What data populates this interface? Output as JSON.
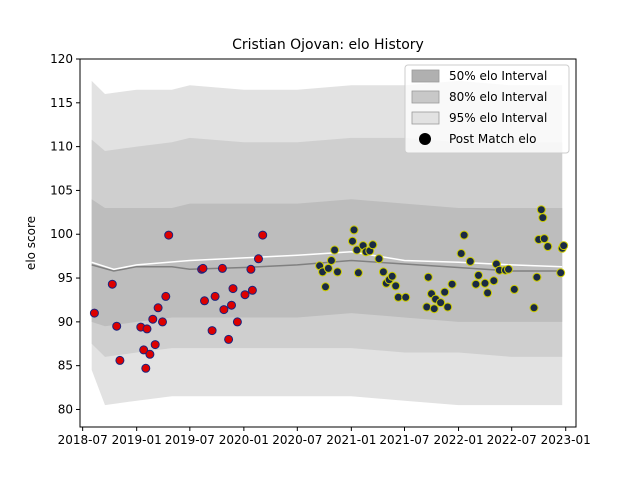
{
  "chart_data": {
    "type": "scatter",
    "title": "Cristian Ojovan: elo History",
    "xlabel": "",
    "ylabel": "elo score",
    "ylim": [
      78,
      120
    ],
    "xlim": [
      "2018-06-22",
      "2023-02-05"
    ],
    "grid": false,
    "legend_position": "top-right",
    "x_ticks": [
      "2018-07",
      "2019-01",
      "2019-07",
      "2020-01",
      "2020-07",
      "2021-01",
      "2021-07",
      "2022-01",
      "2022-07",
      "2023-01"
    ],
    "y_ticks": [
      80,
      85,
      90,
      95,
      100,
      105,
      110,
      115,
      120
    ],
    "legend": [
      {
        "label": "50% elo Interval",
        "kind": "band",
        "color": "#b0b0b0"
      },
      {
        "label": "80% elo Interval",
        "kind": "band",
        "color": "#c8c8c8"
      },
      {
        "label": "95% elo Interval",
        "kind": "band",
        "color": "#e2e2e2"
      },
      {
        "label": "Post Match elo",
        "kind": "marker",
        "color": "#000000"
      }
    ],
    "colors": {
      "band_95": "#e2e2e2",
      "band_80": "#cfcfcf",
      "band_50": "#bdbdbd",
      "mean_line": "#ffffff",
      "median_line": "#808080",
      "early_fill": "#dd0000",
      "early_edge": "#1a237e",
      "late_fill": "#1a2a44",
      "late_edge": "#cccc00"
    },
    "bands": {
      "x": [
        "2018-08-01",
        "2018-09-15",
        "2019-01-01",
        "2019-05-01",
        "2019-07-01",
        "2020-01-01",
        "2020-07-01",
        "2021-01-01",
        "2021-07-01",
        "2022-01-01",
        "2022-07-01",
        "2022-12-20"
      ],
      "p95_low": [
        84.5,
        80.5,
        81.0,
        81.5,
        81.5,
        81.5,
        81.5,
        81.5,
        81.0,
        80.5,
        80.5,
        80.5
      ],
      "p95_high": [
        117.5,
        116.0,
        116.5,
        116.5,
        117.0,
        116.5,
        116.5,
        117.0,
        117.0,
        117.5,
        117.0,
        117.0
      ],
      "p80_low": [
        87.5,
        86.0,
        86.5,
        87.0,
        87.0,
        87.0,
        87.0,
        87.0,
        86.5,
        86.5,
        86.0,
        86.0
      ],
      "p80_high": [
        110.8,
        109.5,
        110.0,
        110.5,
        111.0,
        110.5,
        110.5,
        111.0,
        111.0,
        110.5,
        110.5,
        110.5
      ],
      "p50_low": [
        90.0,
        89.5,
        90.0,
        90.5,
        90.5,
        90.5,
        90.5,
        91.0,
        90.5,
        90.0,
        90.0,
        90.0
      ],
      "p50_high": [
        104.0,
        103.0,
        103.0,
        103.0,
        103.5,
        103.5,
        103.5,
        104.0,
        103.5,
        103.0,
        103.0,
        103.0
      ]
    },
    "mean_line": {
      "x": [
        "2018-08-01",
        "2018-10-15",
        "2019-01-01",
        "2019-07-01",
        "2020-01-01",
        "2020-07-01",
        "2021-01-01",
        "2021-04-01",
        "2021-07-01",
        "2022-01-01",
        "2022-07-01",
        "2022-12-20"
      ],
      "y": [
        96.8,
        96.0,
        96.5,
        97.0,
        97.3,
        97.6,
        98.0,
        97.5,
        97.0,
        96.8,
        96.5,
        96.3
      ]
    },
    "median_line": {
      "x": [
        "2018-08-01",
        "2018-10-15",
        "2019-01-01",
        "2019-05-01",
        "2019-07-01",
        "2020-01-01",
        "2020-07-01",
        "2021-01-01",
        "2021-07-01",
        "2022-01-01",
        "2022-07-01",
        "2022-12-20"
      ],
      "y": [
        96.5,
        95.8,
        96.3,
        96.3,
        96.0,
        96.2,
        96.5,
        97.0,
        96.6,
        96.2,
        95.8,
        95.8
      ]
    },
    "series": [
      {
        "name": "Post Match elo",
        "style": "early",
        "x": [
          "2018-08-10",
          "2018-10-10",
          "2018-10-25",
          "2018-11-05",
          "2019-01-15",
          "2019-01-25",
          "2019-02-01",
          "2019-02-05",
          "2019-02-15",
          "2019-02-25",
          "2019-03-05",
          "2019-03-15",
          "2019-03-30",
          "2019-04-10",
          "2019-04-20",
          "2019-08-10",
          "2019-08-15",
          "2019-08-20",
          "2019-09-15",
          "2019-09-25",
          "2019-10-20",
          "2019-10-25",
          "2019-11-10",
          "2019-11-20",
          "2019-11-25",
          "2019-12-10",
          "2020-01-05",
          "2020-01-25",
          "2020-01-30",
          "2020-02-20",
          "2020-03-05"
        ],
        "y": [
          91.0,
          94.3,
          89.5,
          85.6,
          89.4,
          86.8,
          84.7,
          89.2,
          86.3,
          90.3,
          87.4,
          91.6,
          90.0,
          92.9,
          99.9,
          96.0,
          96.1,
          92.4,
          89.0,
          92.9,
          96.1,
          91.4,
          88.0,
          91.9,
          93.8,
          90.0,
          93.1,
          96.0,
          93.6,
          97.2,
          99.9
        ]
      },
      {
        "name": "Post Match elo",
        "style": "late",
        "x": [
          "2020-09-15",
          "2020-09-25",
          "2020-10-05",
          "2020-10-15",
          "2020-10-25",
          "2020-11-05",
          "2020-11-15",
          "2021-01-05",
          "2021-01-10",
          "2021-01-20",
          "2021-01-25",
          "2021-02-10",
          "2021-02-20",
          "2021-03-05",
          "2021-03-15",
          "2021-04-05",
          "2021-04-20",
          "2021-04-30",
          "2021-05-10",
          "2021-05-20",
          "2021-06-01",
          "2021-06-10",
          "2021-07-05",
          "2021-09-15",
          "2021-09-20",
          "2021-10-01",
          "2021-10-10",
          "2021-10-15",
          "2021-11-01",
          "2021-11-15",
          "2021-11-25",
          "2021-12-10",
          "2022-01-10",
          "2022-01-20",
          "2022-02-10",
          "2022-03-01",
          "2022-03-10",
          "2022-04-01",
          "2022-04-10",
          "2022-05-01",
          "2022-05-10",
          "2022-05-20",
          "2022-06-10",
          "2022-06-20",
          "2022-07-10",
          "2022-09-15",
          "2022-09-25",
          "2022-10-01",
          "2022-10-10",
          "2022-10-15",
          "2022-10-20",
          "2022-11-01",
          "2022-12-15",
          "2022-12-20",
          "2022-12-25"
        ],
        "y": [
          96.4,
          95.7,
          94.0,
          96.1,
          97.0,
          98.2,
          95.7,
          99.2,
          100.5,
          98.2,
          95.6,
          98.7,
          98.0,
          98.1,
          98.8,
          97.2,
          95.7,
          94.4,
          94.8,
          95.2,
          94.1,
          92.8,
          92.8,
          91.7,
          95.1,
          93.2,
          91.5,
          92.6,
          92.2,
          93.4,
          91.7,
          94.3,
          97.8,
          99.9,
          96.9,
          94.3,
          95.3,
          94.4,
          93.3,
          94.7,
          96.6,
          95.9,
          95.9,
          96.0,
          93.7,
          91.6,
          95.1,
          99.4,
          102.8,
          101.9,
          99.5,
          98.6,
          95.6,
          98.4,
          98.7
        ]
      }
    ]
  }
}
